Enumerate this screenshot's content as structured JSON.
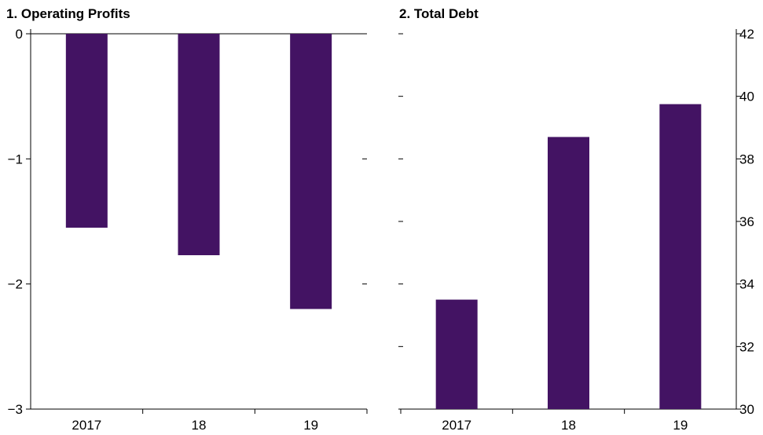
{
  "colors": {
    "bar": "#431363",
    "axis": "#000000"
  },
  "chart_data": [
    {
      "type": "bar",
      "title": "1. Operating Profits",
      "categories": [
        "2017",
        "18",
        "19"
      ],
      "values": [
        -1.55,
        -1.77,
        -2.2
      ],
      "ylim": [
        -3,
        0
      ],
      "yticks": [
        0,
        -1,
        -2,
        -3
      ],
      "ytick_labels": [
        "0",
        "−1",
        "−2",
        "−3"
      ],
      "yaxis_side": "left",
      "xlabel": "",
      "ylabel": ""
    },
    {
      "type": "bar",
      "title": "2. Total Debt",
      "categories": [
        "2017",
        "18",
        "19"
      ],
      "values": [
        33.5,
        38.7,
        39.75
      ],
      "ylim": [
        30,
        42
      ],
      "yticks": [
        30,
        32,
        34,
        36,
        38,
        40,
        42
      ],
      "ytick_labels": [
        "30",
        "32",
        "34",
        "36",
        "38",
        "40",
        "42"
      ],
      "yaxis_side": "right",
      "xlabel": "",
      "ylabel": ""
    }
  ]
}
